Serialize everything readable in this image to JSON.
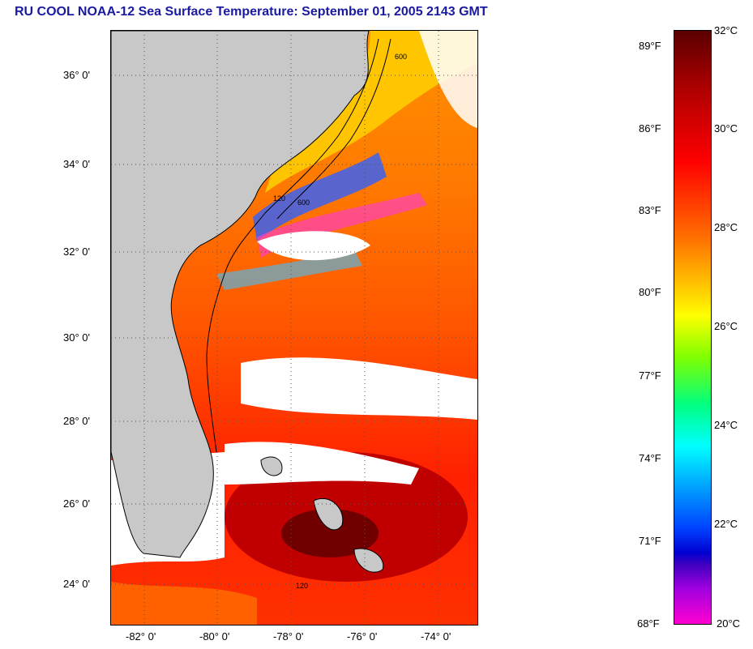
{
  "title": "RU COOL  NOAA-12  Sea Surface Temperature:  September 01, 2005 2143 GMT",
  "lat_labels": [
    "36° 0'",
    "34° 0'",
    "32° 0'",
    "30° 0'",
    "28° 0'",
    "26° 0'",
    "24° 0'"
  ],
  "lon_labels": [
    "-82° 0'",
    "-80° 0'",
    "-78° 0'",
    "-76° 0'",
    "-74° 0'"
  ],
  "colorbar": {
    "fahrenheit": [
      "89°F",
      "86°F",
      "83°F",
      "80°F",
      "77°F",
      "74°F",
      "71°F",
      "68°F"
    ],
    "celsius": [
      "32°C",
      "30°C",
      "28°C",
      "26°C",
      "24°C",
      "22°C",
      "20°C"
    ]
  },
  "contour_labels": [
    "600",
    "120",
    "600",
    "120"
  ],
  "colors": {
    "title": "#1a1aa0",
    "land": "#c8c8c8",
    "cloud": "#ffffff"
  }
}
